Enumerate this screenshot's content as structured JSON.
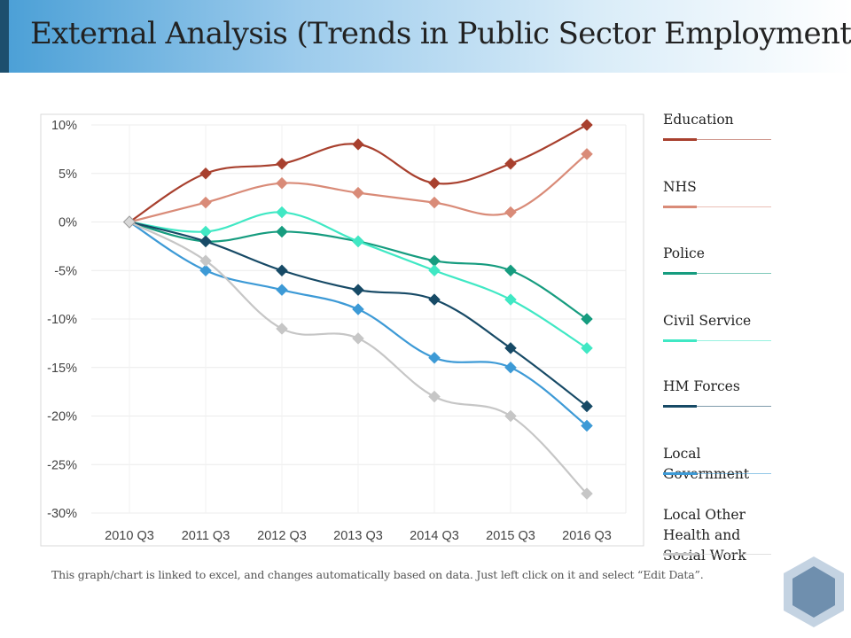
{
  "page": {
    "title": "External Analysis (Trends in Public Sector Employment)"
  },
  "footnote": "This graph/chart is linked to excel, and changes automatically based on data. Just left click on it and select “Edit Data”.",
  "colors": {
    "title_bar_start": "#4a9fd6",
    "title_accent": "#1d4f6e",
    "hex_logo": "#6f8fae"
  },
  "chart_data": {
    "type": "line",
    "title": "",
    "xlabel": "",
    "ylabel": "",
    "categories": [
      "2010 Q3",
      "2011 Q3",
      "2012 Q3",
      "2013 Q3",
      "2014 Q3",
      "2015 Q3",
      "2016 Q3"
    ],
    "y_ticks": [
      10,
      5,
      0,
      -5,
      -10,
      -15,
      -20,
      -25,
      -30
    ],
    "y_tick_labels": [
      "10%",
      "5%",
      "0%",
      "-5%",
      "-10%",
      "-15%",
      "-20%",
      "-25%",
      "-30%"
    ],
    "ylim": [
      -30,
      10
    ],
    "grid": true,
    "marker": "diamond",
    "smooth": true,
    "legend_position": "right",
    "series": [
      {
        "name": "Education",
        "color": "#a8402e",
        "values": [
          0,
          5,
          6,
          8,
          4,
          6,
          10
        ]
      },
      {
        "name": "NHS",
        "color": "#d98b78",
        "values": [
          0,
          2,
          4,
          3,
          2,
          1,
          7
        ]
      },
      {
        "name": "Police",
        "color": "#169c7f",
        "values": [
          0,
          -2,
          -1,
          -2,
          -4,
          -5,
          -10
        ]
      },
      {
        "name": "Civil Service",
        "color": "#40e8c4",
        "values": [
          0,
          -1,
          1,
          -2,
          -5,
          -8,
          -13
        ]
      },
      {
        "name": "HM Forces",
        "color": "#174a66",
        "values": [
          0,
          -2,
          -5,
          -7,
          -8,
          -13,
          -19
        ]
      },
      {
        "name": "Local Government",
        "color": "#3d9ad6",
        "values": [
          0,
          -5,
          -7,
          -9,
          -14,
          -15,
          -21
        ]
      },
      {
        "name": "Local Other Health and Social Work",
        "color": "#c6c6c6",
        "values": [
          0,
          -4,
          -11,
          -12,
          -18,
          -20,
          -28
        ]
      }
    ]
  }
}
